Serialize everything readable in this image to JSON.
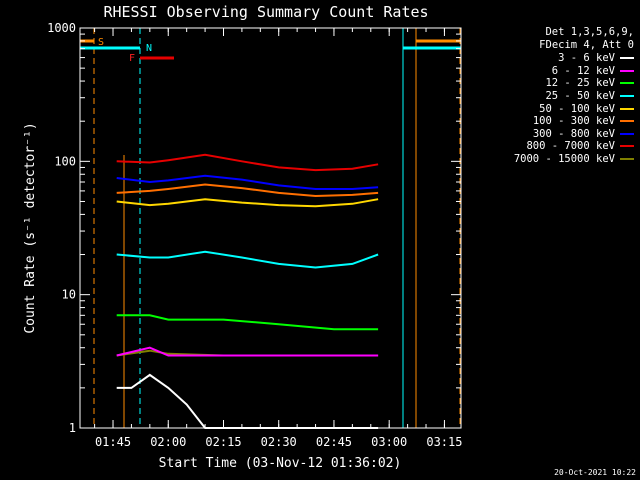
{
  "chart_data": {
    "type": "line",
    "title": "RHESSI Observing Summary Count Rates",
    "xlabel": "Start Time (03-Nov-12 01:36:02)",
    "ylabel": "Count Rate (s⁻¹ detector⁻¹)",
    "yscale": "log",
    "ylim": [
      1,
      1000
    ],
    "xlim": [
      "01:36:02",
      "03:19:30"
    ],
    "x_ticks": [
      "01:45",
      "02:00",
      "02:15",
      "02:30",
      "02:45",
      "03:00",
      "03:15"
    ],
    "y_ticks": [
      "1",
      "10",
      "100",
      "1000"
    ],
    "legend_header": [
      "Det 1,3,5,6,9,",
      "FDecim 4, Att 0"
    ],
    "series": [
      {
        "name": "3 - 6 keV",
        "color": "#ffffff",
        "x": [
          "01:46",
          "01:50",
          "01:55",
          "02:00",
          "02:05",
          "02:10",
          "02:30",
          "02:35",
          "02:40",
          "02:45",
          "02:50",
          "02:57"
        ],
        "y": [
          2.0,
          2.0,
          2.5,
          2.0,
          1.5,
          1.0,
          1.0,
          1.0,
          1.0,
          1.0,
          1.0,
          1.0
        ]
      },
      {
        "name": "6 - 12 keV",
        "color": "#ff00ff",
        "x": [
          "01:46",
          "01:55",
          "02:00",
          "02:15",
          "02:30",
          "02:45",
          "02:57"
        ],
        "y": [
          3.5,
          4.0,
          3.5,
          3.5,
          3.5,
          3.5,
          3.5
        ]
      },
      {
        "name": "12 - 25 keV",
        "color": "#00ff00",
        "x": [
          "01:46",
          "01:55",
          "02:00",
          "02:15",
          "02:30",
          "02:45",
          "02:57"
        ],
        "y": [
          7.0,
          7.0,
          6.5,
          6.5,
          6.0,
          5.5,
          5.5
        ]
      },
      {
        "name": "25 - 50 keV",
        "color": "#00ffff",
        "x": [
          "01:46",
          "01:55",
          "02:00",
          "02:10",
          "02:20",
          "02:30",
          "02:40",
          "02:50",
          "02:57"
        ],
        "y": [
          20,
          19,
          19,
          21,
          19,
          17,
          16,
          17,
          20
        ]
      },
      {
        "name": "50 - 100 keV",
        "color": "#ffd700",
        "x": [
          "01:46",
          "01:55",
          "02:00",
          "02:10",
          "02:20",
          "02:30",
          "02:40",
          "02:50",
          "02:57"
        ],
        "y": [
          50,
          47,
          48,
          52,
          49,
          47,
          46,
          48,
          52
        ]
      },
      {
        "name": "100 - 300 keV",
        "color": "#ff6f00",
        "x": [
          "01:46",
          "01:55",
          "02:00",
          "02:10",
          "02:20",
          "02:30",
          "02:40",
          "02:50",
          "02:57"
        ],
        "y": [
          58,
          60,
          62,
          67,
          63,
          58,
          55,
          56,
          58
        ]
      },
      {
        "name": "300 - 800 keV",
        "color": "#0000ff",
        "x": [
          "01:46",
          "01:55",
          "02:00",
          "02:10",
          "02:20",
          "02:30",
          "02:40",
          "02:50",
          "02:57"
        ],
        "y": [
          75,
          70,
          72,
          78,
          73,
          66,
          62,
          62,
          64
        ]
      },
      {
        "name": "800 - 7000 keV",
        "color": "#e60000",
        "x": [
          "01:46",
          "01:55",
          "02:00",
          "02:10",
          "02:20",
          "02:30",
          "02:40",
          "02:50",
          "02:57"
        ],
        "y": [
          100,
          98,
          102,
          112,
          100,
          90,
          86,
          88,
          95
        ]
      },
      {
        "name": "7000 - 15000 keV",
        "color": "#808000",
        "x": [
          "01:46",
          "01:55",
          "02:00",
          "02:15",
          "02:30",
          "02:45",
          "02:57"
        ],
        "y": [
          3.5,
          3.8,
          3.6,
          3.5,
          3.5,
          3.5,
          3.5
        ]
      }
    ],
    "annotations": [
      {
        "label": "S",
        "color": "#ff8c00"
      },
      {
        "label": "N",
        "color": "#00ffff"
      },
      {
        "label": "F",
        "color": "#ff2020"
      }
    ],
    "footer_date": "20-Oct-2021 10:22"
  }
}
